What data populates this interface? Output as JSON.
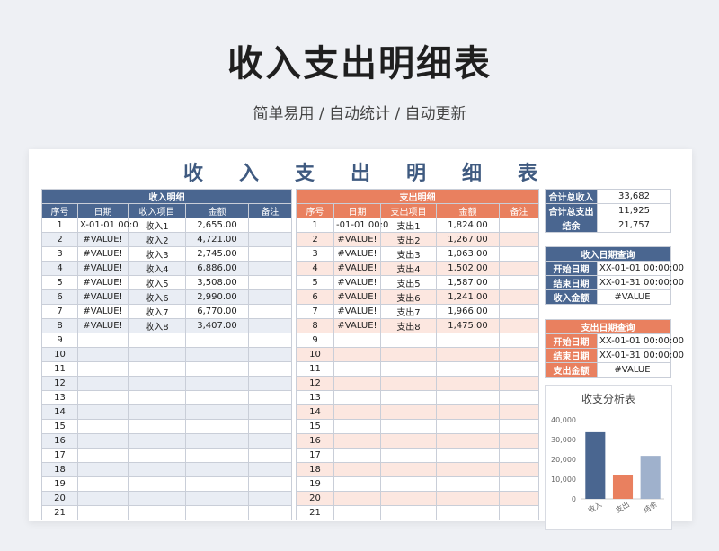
{
  "hero": {
    "title": "收入支出明细表",
    "subtitle": "简单易用  /  自动统计  /  自动更新"
  },
  "sheet_title": [
    "收",
    "入",
    "支",
    "出",
    "明",
    "细",
    "表"
  ],
  "income": {
    "caption": "收入明细",
    "headers": [
      "序号",
      "日期",
      "收入项目",
      "金额",
      "备注"
    ],
    "rows": [
      [
        "1",
        "X-01-01 00:0",
        "收入1",
        "2,655.00",
        ""
      ],
      [
        "2",
        "#VALUE!",
        "收入2",
        "4,721.00",
        ""
      ],
      [
        "3",
        "#VALUE!",
        "收入3",
        "2,745.00",
        ""
      ],
      [
        "4",
        "#VALUE!",
        "收入4",
        "6,886.00",
        ""
      ],
      [
        "5",
        "#VALUE!",
        "收入5",
        "3,508.00",
        ""
      ],
      [
        "6",
        "#VALUE!",
        "收入6",
        "2,990.00",
        ""
      ],
      [
        "7",
        "#VALUE!",
        "收入7",
        "6,770.00",
        ""
      ],
      [
        "8",
        "#VALUE!",
        "收入8",
        "3,407.00",
        ""
      ],
      [
        "9",
        "",
        "",
        "",
        ""
      ],
      [
        "10",
        "",
        "",
        "",
        ""
      ],
      [
        "11",
        "",
        "",
        "",
        ""
      ],
      [
        "12",
        "",
        "",
        "",
        ""
      ],
      [
        "13",
        "",
        "",
        "",
        ""
      ],
      [
        "14",
        "",
        "",
        "",
        ""
      ],
      [
        "15",
        "",
        "",
        "",
        ""
      ],
      [
        "16",
        "",
        "",
        "",
        ""
      ],
      [
        "17",
        "",
        "",
        "",
        ""
      ],
      [
        "18",
        "",
        "",
        "",
        ""
      ],
      [
        "19",
        "",
        "",
        "",
        ""
      ],
      [
        "20",
        "",
        "",
        "",
        ""
      ],
      [
        "21",
        "",
        "",
        "",
        ""
      ]
    ]
  },
  "expense": {
    "caption": "支出明细",
    "headers": [
      "序号",
      "日期",
      "支出项目",
      "金额",
      "备注"
    ],
    "rows": [
      [
        "1",
        "-01-01 00:0",
        "支出1",
        "1,824.00",
        ""
      ],
      [
        "2",
        "#VALUE!",
        "支出2",
        "1,267.00",
        ""
      ],
      [
        "3",
        "#VALUE!",
        "支出3",
        "1,063.00",
        ""
      ],
      [
        "4",
        "#VALUE!",
        "支出4",
        "1,502.00",
        ""
      ],
      [
        "5",
        "#VALUE!",
        "支出5",
        "1,587.00",
        ""
      ],
      [
        "6",
        "#VALUE!",
        "支出6",
        "1,241.00",
        ""
      ],
      [
        "7",
        "#VALUE!",
        "支出7",
        "1,966.00",
        ""
      ],
      [
        "8",
        "#VALUE!",
        "支出8",
        "1,475.00",
        ""
      ],
      [
        "9",
        "",
        "",
        "",
        ""
      ],
      [
        "10",
        "",
        "",
        "",
        ""
      ],
      [
        "11",
        "",
        "",
        "",
        ""
      ],
      [
        "12",
        "",
        "",
        "",
        ""
      ],
      [
        "13",
        "",
        "",
        "",
        ""
      ],
      [
        "14",
        "",
        "",
        "",
        ""
      ],
      [
        "15",
        "",
        "",
        "",
        ""
      ],
      [
        "16",
        "",
        "",
        "",
        ""
      ],
      [
        "17",
        "",
        "",
        "",
        ""
      ],
      [
        "18",
        "",
        "",
        "",
        ""
      ],
      [
        "19",
        "",
        "",
        "",
        ""
      ],
      [
        "20",
        "",
        "",
        "",
        ""
      ],
      [
        "21",
        "",
        "",
        "",
        ""
      ]
    ]
  },
  "summary": [
    {
      "label": "合计总收入",
      "value": "33,682"
    },
    {
      "label": "合计总支出",
      "value": "11,925"
    },
    {
      "label": "结余",
      "value": "21,757"
    }
  ],
  "income_query": {
    "caption": "收入日期查询",
    "rows": [
      {
        "label": "开始日期",
        "value": "XX-01-01 00:00:00"
      },
      {
        "label": "结束日期",
        "value": "XX-01-31 00:00:00"
      },
      {
        "label": "收入金额",
        "value": "#VALUE!"
      }
    ]
  },
  "expense_query": {
    "caption": "支出日期查询",
    "rows": [
      {
        "label": "开始日期",
        "value": "XX-01-01 00:00:00"
      },
      {
        "label": "结束日期",
        "value": "XX-01-31 00:00:00"
      },
      {
        "label": "支出金额",
        "value": "#VALUE!"
      }
    ]
  },
  "chart_data": {
    "type": "bar",
    "title": "收支分析表",
    "categories": [
      "收入",
      "支出",
      "结余"
    ],
    "values": [
      33682,
      11925,
      21757
    ],
    "colors": [
      "#4a6690",
      "#e9805f",
      "#9fb1cc"
    ],
    "ylim": [
      0,
      40000
    ],
    "yticks": [
      "40,000",
      "30,000",
      "20,000",
      "10,000",
      "0"
    ],
    "ytick_values": [
      40000,
      30000,
      20000,
      10000,
      0
    ],
    "grid": false
  }
}
